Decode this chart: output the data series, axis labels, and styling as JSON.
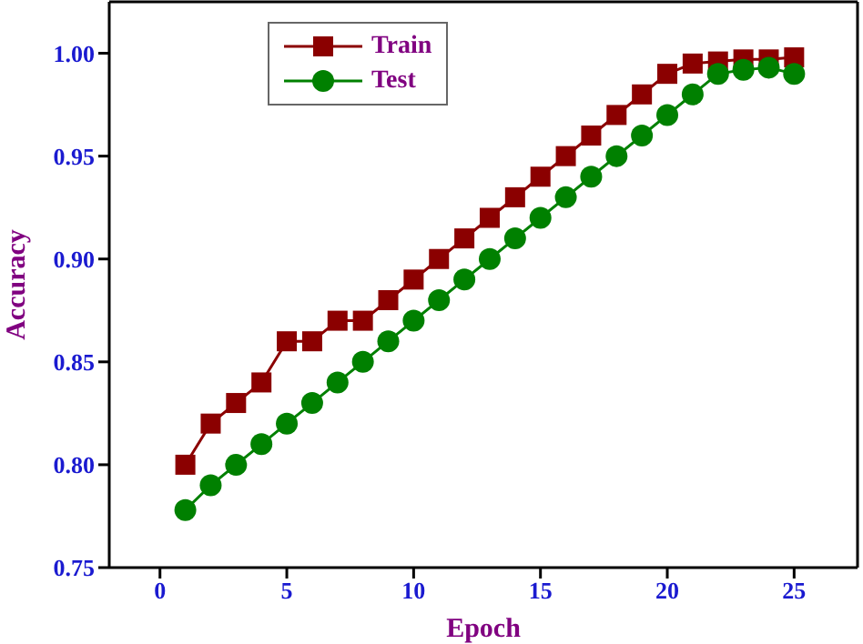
{
  "chart_data": {
    "type": "line",
    "xlabel": "Epoch",
    "ylabel": "Accuracy",
    "x": [
      1,
      2,
      3,
      4,
      5,
      6,
      7,
      8,
      9,
      10,
      11,
      12,
      13,
      14,
      15,
      16,
      17,
      18,
      19,
      20,
      21,
      22,
      23,
      24,
      25
    ],
    "series": [
      {
        "name": "Train",
        "color": "#8b0000",
        "marker": "square",
        "values": [
          0.8,
          0.82,
          0.83,
          0.84,
          0.86,
          0.86,
          0.87,
          0.87,
          0.88,
          0.89,
          0.9,
          0.91,
          0.92,
          0.93,
          0.94,
          0.95,
          0.96,
          0.97,
          0.98,
          0.99,
          0.995,
          0.996,
          0.997,
          0.997,
          0.998
        ]
      },
      {
        "name": "Test",
        "color": "#008000",
        "marker": "circle",
        "values": [
          0.778,
          0.79,
          0.8,
          0.81,
          0.82,
          0.83,
          0.84,
          0.85,
          0.86,
          0.87,
          0.88,
          0.89,
          0.9,
          0.91,
          0.92,
          0.93,
          0.94,
          0.95,
          0.96,
          0.97,
          0.98,
          0.99,
          0.992,
          0.993,
          0.99
        ]
      }
    ],
    "xlim": [
      -2,
      27.5
    ],
    "xticks": [
      0,
      5,
      10,
      15,
      20,
      25
    ],
    "ylim": [
      0.75,
      1.025
    ],
    "yticks": [
      {
        "value": 0.75,
        "label": "0.75"
      },
      {
        "value": 0.8,
        "label": "0.80"
      },
      {
        "value": 0.85,
        "label": "0.85"
      },
      {
        "value": 0.9,
        "label": "0.90"
      },
      {
        "value": 0.95,
        "label": "0.95"
      },
      {
        "value": 1.0,
        "label": "1.00"
      }
    ],
    "legend": "top"
  }
}
